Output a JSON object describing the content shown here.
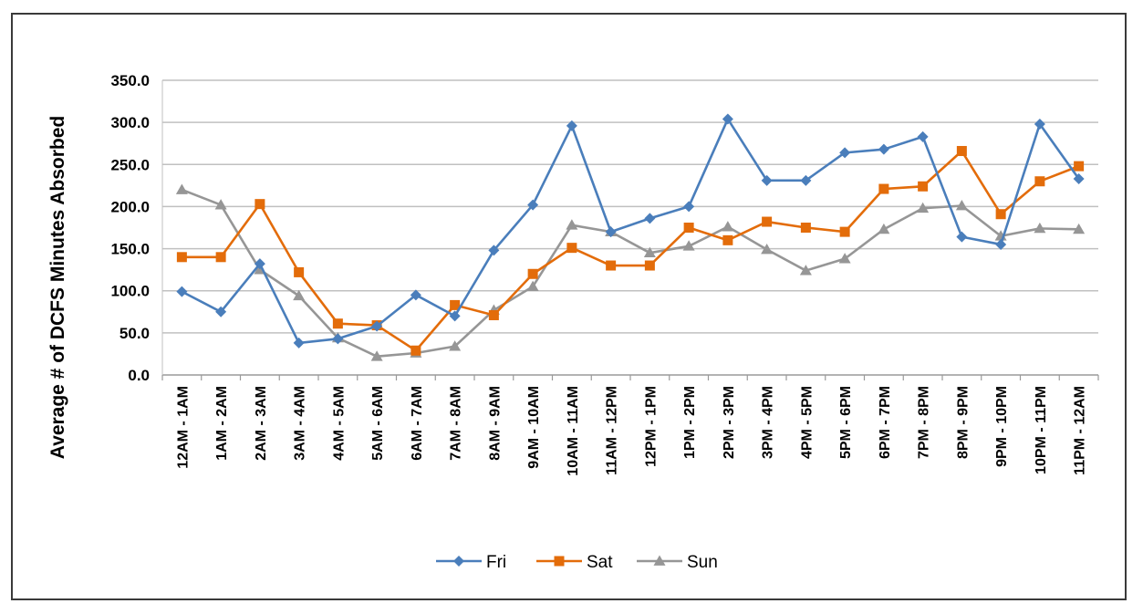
{
  "chart_data": {
    "type": "line",
    "title": "",
    "xlabel": "",
    "ylabel": "Average  # of  DCFS  Minutes Absorbed",
    "ylim": [
      0,
      350
    ],
    "yticks": [
      "0.0",
      "50.0",
      "100.0",
      "150.0",
      "200.0",
      "250.0",
      "300.0",
      "350.0"
    ],
    "grid": true,
    "legend_position": "bottom",
    "categories": [
      "12AM - 1AM",
      "1AM - 2AM",
      "2AM - 3AM",
      "3AM - 4AM",
      "4AM - 5AM",
      "5AM - 6AM",
      "6AM - 7AM",
      "7AM - 8AM",
      "8AM - 9AM",
      "9AM - 10AM",
      "10AM - 11AM",
      "11AM - 12PM",
      "12PM - 1PM",
      "1PM - 2PM",
      "2PM - 3PM",
      "3PM - 4PM",
      "4PM - 5PM",
      "5PM - 6PM",
      "6PM - 7PM",
      "7PM - 8PM",
      "8PM - 9PM",
      "9PM - 10PM",
      "10PM - 11PM",
      "11PM - 12AM"
    ],
    "series": [
      {
        "name": "Fri",
        "color": "#4a7ebb",
        "marker": "diamond",
        "values": [
          99,
          75,
          132,
          38,
          43,
          58,
          95,
          70,
          148,
          202,
          296,
          170,
          186,
          200,
          304,
          231,
          231,
          264,
          268,
          283,
          164,
          155,
          298,
          233
        ]
      },
      {
        "name": "Sat",
        "color": "#e36c0a",
        "marker": "square",
        "values": [
          140,
          140,
          203,
          122,
          61,
          59,
          29,
          83,
          71,
          120,
          151,
          130,
          130,
          175,
          160,
          182,
          175,
          170,
          221,
          224,
          266,
          191,
          230,
          248
        ]
      },
      {
        "name": "Sun",
        "color": "#969696",
        "marker": "triangle",
        "values": [
          220,
          202,
          125,
          94,
          44,
          22,
          26,
          34,
          77,
          105,
          178,
          170,
          145,
          153,
          176,
          149,
          124,
          138,
          173,
          198,
          201,
          165,
          174,
          173
        ]
      }
    ]
  }
}
